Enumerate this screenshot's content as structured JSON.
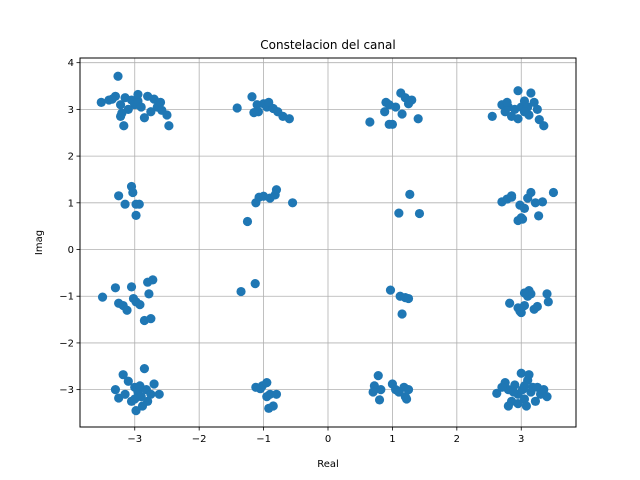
{
  "chart_data": {
    "type": "scatter",
    "title": "Constelacion del canal",
    "xlabel": "Real",
    "ylabel": "Imag",
    "xlim": [
      -3.85,
      3.85
    ],
    "ylim": [
      -3.8,
      4.1
    ],
    "xticks": [
      -3,
      -2,
      -1,
      0,
      1,
      2,
      3
    ],
    "xtick_labels": [
      "−3",
      "−2",
      "−1",
      "0",
      "1",
      "2",
      "3"
    ],
    "yticks": [
      -3,
      -2,
      -1,
      0,
      1,
      2,
      3,
      4
    ],
    "ytick_labels": [
      "−3",
      "−2",
      "−1",
      "0",
      "1",
      "2",
      "3",
      "4"
    ],
    "grid": true,
    "marker_color": "#1f77b4",
    "series": [
      {
        "points": [
          [
            -3.26,
            3.71
          ],
          [
            -3.52,
            3.15
          ],
          [
            -3.4,
            3.2
          ],
          [
            -3.3,
            3.28
          ],
          [
            -3.22,
            3.1
          ],
          [
            -3.15,
            3.25
          ],
          [
            -3.05,
            3.2
          ],
          [
            -3.0,
            3.1
          ],
          [
            -2.95,
            3.18
          ],
          [
            -2.9,
            3.05
          ],
          [
            -2.8,
            3.28
          ],
          [
            -2.7,
            3.22
          ],
          [
            -2.65,
            3.05
          ],
          [
            -2.6,
            3.15
          ],
          [
            -2.75,
            2.95
          ],
          [
            -2.85,
            2.82
          ],
          [
            -3.1,
            3.0
          ],
          [
            -3.2,
            2.92
          ],
          [
            -2.5,
            2.88
          ],
          [
            -2.47,
            2.65
          ],
          [
            -3.17,
            2.65
          ],
          [
            -3.22,
            2.85
          ],
          [
            -2.95,
            3.32
          ],
          [
            -3.35,
            3.22
          ],
          [
            -2.58,
            2.98
          ],
          [
            -1.41,
            3.03
          ],
          [
            -1.18,
            3.27
          ],
          [
            -1.1,
            3.1
          ],
          [
            -1.0,
            3.12
          ],
          [
            -1.08,
            2.95
          ],
          [
            -0.95,
            3.05
          ],
          [
            -0.85,
            3.02
          ],
          [
            -0.78,
            2.95
          ],
          [
            -0.7,
            2.85
          ],
          [
            -0.6,
            2.8
          ],
          [
            -1.15,
            2.93
          ],
          [
            -0.92,
            3.15
          ],
          [
            0.65,
            2.73
          ],
          [
            0.9,
            3.15
          ],
          [
            0.95,
            3.1
          ],
          [
            1.05,
            3.05
          ],
          [
            1.13,
            3.35
          ],
          [
            1.2,
            3.25
          ],
          [
            1.25,
            3.12
          ],
          [
            1.3,
            3.2
          ],
          [
            1.15,
            2.9
          ],
          [
            1.0,
            2.68
          ],
          [
            0.95,
            2.68
          ],
          [
            1.4,
            2.8
          ],
          [
            0.88,
            2.95
          ],
          [
            2.55,
            2.85
          ],
          [
            2.7,
            3.1
          ],
          [
            2.75,
            2.95
          ],
          [
            2.8,
            3.05
          ],
          [
            2.9,
            3.0
          ],
          [
            2.95,
            3.4
          ],
          [
            3.0,
            3.05
          ],
          [
            3.05,
            3.18
          ],
          [
            3.1,
            3.05
          ],
          [
            3.15,
            3.35
          ],
          [
            3.2,
            3.15
          ],
          [
            3.25,
            3.0
          ],
          [
            3.28,
            2.78
          ],
          [
            3.35,
            2.65
          ],
          [
            3.05,
            2.95
          ],
          [
            2.95,
            2.8
          ],
          [
            2.85,
            2.85
          ],
          [
            2.78,
            3.15
          ],
          [
            3.12,
            2.88
          ],
          [
            -3.25,
            1.15
          ],
          [
            -3.05,
            1.35
          ],
          [
            -3.03,
            1.22
          ],
          [
            -3.15,
            0.97
          ],
          [
            -2.98,
            0.97
          ],
          [
            -2.93,
            0.97
          ],
          [
            -2.98,
            0.73
          ],
          [
            -1.25,
            0.6
          ],
          [
            -1.12,
            1.0
          ],
          [
            -1.07,
            1.12
          ],
          [
            -1.0,
            1.14
          ],
          [
            -0.9,
            1.1
          ],
          [
            -0.82,
            1.17
          ],
          [
            -0.8,
            1.28
          ],
          [
            -0.55,
            1.0
          ],
          [
            1.1,
            0.78
          ],
          [
            1.27,
            1.18
          ],
          [
            1.42,
            0.77
          ],
          [
            2.7,
            1.02
          ],
          [
            2.78,
            1.08
          ],
          [
            2.85,
            1.12
          ],
          [
            2.85,
            1.15
          ],
          [
            2.98,
            0.95
          ],
          [
            3.02,
            0.65
          ],
          [
            3.05,
            0.88
          ],
          [
            3.1,
            1.1
          ],
          [
            3.15,
            1.22
          ],
          [
            3.22,
            1.0
          ],
          [
            3.27,
            0.72
          ],
          [
            3.33,
            1.02
          ],
          [
            3.5,
            1.22
          ],
          [
            2.95,
            0.62
          ],
          [
            3.0,
            0.68
          ],
          [
            -3.5,
            -1.02
          ],
          [
            -3.3,
            -0.82
          ],
          [
            -3.25,
            -1.15
          ],
          [
            -3.18,
            -1.2
          ],
          [
            -3.12,
            -1.3
          ],
          [
            -3.05,
            -0.8
          ],
          [
            -3.02,
            -1.05
          ],
          [
            -2.98,
            -1.12
          ],
          [
            -2.92,
            -1.18
          ],
          [
            -2.85,
            -1.52
          ],
          [
            -2.78,
            -0.95
          ],
          [
            -2.75,
            -1.48
          ],
          [
            -2.8,
            -0.7
          ],
          [
            -2.72,
            -0.65
          ],
          [
            -1.35,
            -0.9
          ],
          [
            -1.13,
            -0.73
          ],
          [
            0.97,
            -0.87
          ],
          [
            1.12,
            -1.0
          ],
          [
            1.15,
            -1.38
          ],
          [
            1.2,
            -1.03
          ],
          [
            1.25,
            -1.05
          ],
          [
            2.82,
            -1.15
          ],
          [
            2.95,
            -1.25
          ],
          [
            3.0,
            -1.35
          ],
          [
            3.05,
            -1.2
          ],
          [
            3.1,
            -1.0
          ],
          [
            3.12,
            -0.88
          ],
          [
            3.15,
            -0.95
          ],
          [
            3.2,
            -1.28
          ],
          [
            3.25,
            -1.22
          ],
          [
            3.4,
            -0.95
          ],
          [
            3.42,
            -1.12
          ],
          [
            3.05,
            -0.93
          ],
          [
            2.98,
            -1.32
          ],
          [
            -3.3,
            -3.0
          ],
          [
            -3.18,
            -2.68
          ],
          [
            -3.1,
            -2.82
          ],
          [
            -3.0,
            -2.95
          ],
          [
            -2.95,
            -3.05
          ],
          [
            -2.9,
            -3.15
          ],
          [
            -2.85,
            -2.55
          ],
          [
            -2.82,
            -3.0
          ],
          [
            -2.8,
            -3.25
          ],
          [
            -2.75,
            -3.1
          ],
          [
            -2.7,
            -2.88
          ],
          [
            -2.62,
            -3.1
          ],
          [
            -2.98,
            -3.45
          ],
          [
            -3.05,
            -3.25
          ],
          [
            -3.25,
            -3.18
          ],
          [
            -3.15,
            -3.1
          ],
          [
            -2.88,
            -3.35
          ],
          [
            -3.0,
            -3.2
          ],
          [
            -2.92,
            -2.92
          ],
          [
            -1.12,
            -2.95
          ],
          [
            -1.02,
            -2.92
          ],
          [
            -0.95,
            -2.85
          ],
          [
            -0.95,
            -3.15
          ],
          [
            -0.9,
            -3.1
          ],
          [
            -0.85,
            -3.35
          ],
          [
            -0.8,
            -3.1
          ],
          [
            -0.92,
            -3.4
          ],
          [
            -1.05,
            -2.98
          ],
          [
            0.72,
            -2.92
          ],
          [
            0.78,
            -2.7
          ],
          [
            0.82,
            -3.0
          ],
          [
            0.8,
            -3.22
          ],
          [
            1.0,
            -2.88
          ],
          [
            1.05,
            -3.0
          ],
          [
            1.1,
            -3.05
          ],
          [
            1.18,
            -2.95
          ],
          [
            1.2,
            -3.15
          ],
          [
            1.25,
            -3.0
          ],
          [
            1.22,
            -3.2
          ],
          [
            0.7,
            -3.05
          ],
          [
            2.62,
            -3.08
          ],
          [
            2.75,
            -2.85
          ],
          [
            2.8,
            -3.0
          ],
          [
            2.85,
            -3.25
          ],
          [
            2.9,
            -2.9
          ],
          [
            2.95,
            -3.1
          ],
          [
            3.0,
            -2.65
          ],
          [
            3.02,
            -3.0
          ],
          [
            3.05,
            -3.2
          ],
          [
            3.1,
            -2.8
          ],
          [
            3.15,
            -3.05
          ],
          [
            3.18,
            -2.95
          ],
          [
            3.22,
            -3.25
          ],
          [
            3.25,
            -2.95
          ],
          [
            3.3,
            -3.1
          ],
          [
            3.35,
            -3.0
          ],
          [
            2.8,
            -3.35
          ],
          [
            2.95,
            -3.3
          ],
          [
            3.08,
            -3.35
          ],
          [
            3.12,
            -2.68
          ],
          [
            2.7,
            -2.95
          ],
          [
            3.4,
            -3.15
          ],
          [
            2.88,
            -3.05
          ],
          [
            3.05,
            -2.92
          ]
        ]
      }
    ]
  }
}
